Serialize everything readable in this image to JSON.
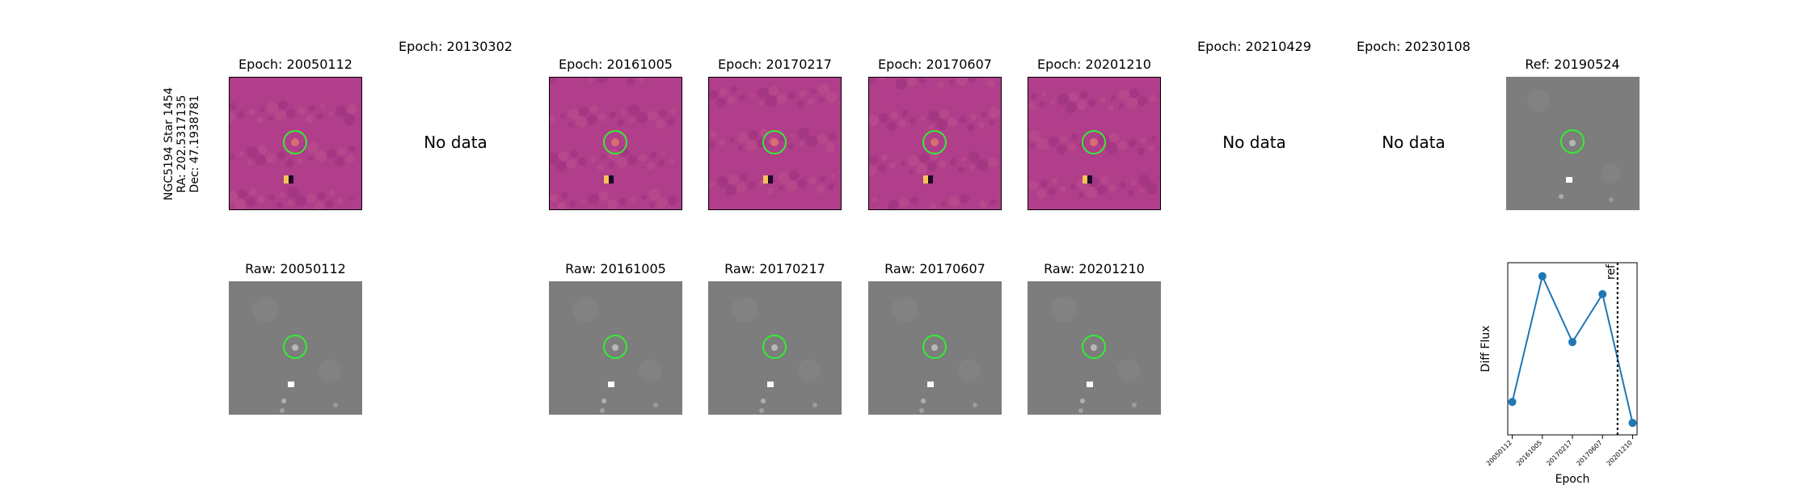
{
  "star": {
    "name": "NGC5194 Star 1454",
    "ra": "RA: 202.5317135",
    "dec": "Dec: 47.1938781"
  },
  "epochs": [
    {
      "date": "20050112",
      "diff_title": "Epoch: 20050112",
      "raw_title": "Raw: 20050112",
      "has_data": true
    },
    {
      "date": "20130302",
      "diff_title": "Epoch: 20130302",
      "raw_title": "",
      "has_data": false
    },
    {
      "date": "20161005",
      "diff_title": "Epoch: 20161005",
      "raw_title": "Raw: 20161005",
      "has_data": true
    },
    {
      "date": "20170217",
      "diff_title": "Epoch: 20170217",
      "raw_title": "Raw: 20170217",
      "has_data": true
    },
    {
      "date": "20170607",
      "diff_title": "Epoch: 20170607",
      "raw_title": "Raw: 20170607",
      "has_data": true
    },
    {
      "date": "20201210",
      "diff_title": "Epoch: 20201210",
      "raw_title": "Raw: 20201210",
      "has_data": true
    },
    {
      "date": "20210429",
      "diff_title": "Epoch: 20210429",
      "raw_title": "",
      "has_data": false
    },
    {
      "date": "20230108",
      "diff_title": "Epoch: 20230108",
      "raw_title": "",
      "has_data": false
    }
  ],
  "no_data_label": "No data",
  "reference": {
    "title": "Ref: 20190524"
  },
  "colors": {
    "diff_bg": "#b03e8a",
    "marker_circle": "#33ee33",
    "raw_bg": "#7d7d7d",
    "series": "#1f77b4"
  },
  "chart_data": {
    "type": "line",
    "title": "",
    "xlabel": "Epoch",
    "ylabel": "Diff Flux",
    "categories": [
      "20050112",
      "20161005",
      "20170217",
      "20170607",
      "20201210"
    ],
    "x": [
      0,
      1,
      2,
      3,
      4
    ],
    "values": [
      0.12,
      0.96,
      0.52,
      0.84,
      -0.02
    ],
    "ylim": [
      -0.1,
      1.05
    ],
    "xlim": [
      -0.15,
      4.15
    ],
    "ref_line": {
      "x": 3.5,
      "label": "ref",
      "style": "dotted"
    },
    "grid": false
  }
}
